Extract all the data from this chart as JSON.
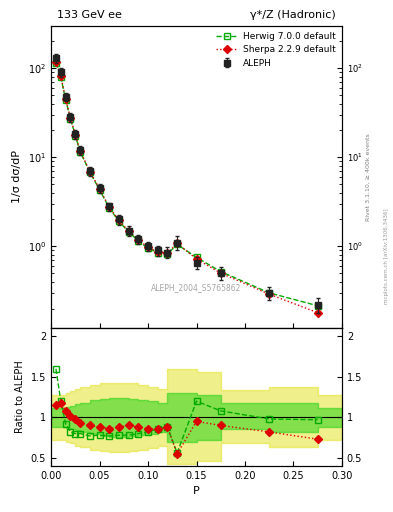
{
  "title_left": "133 GeV ee",
  "title_right": "γ*/Z (Hadronic)",
  "ylabel_main": "1/σ dσ/dP",
  "ylabel_ratio": "Ratio to ALEPH",
  "xlabel": "P",
  "watermark": "ALEPH_2004_S5765862",
  "right_label": "Rivet 3.1.10, ≥ 400k events",
  "right_label2": "mcplots.cern.ch [arXiv:1306.3436]",
  "aleph_x": [
    0.005,
    0.01,
    0.015,
    0.02,
    0.025,
    0.03,
    0.04,
    0.05,
    0.06,
    0.07,
    0.08,
    0.09,
    0.1,
    0.11,
    0.12,
    0.13,
    0.15,
    0.175,
    0.225,
    0.275
  ],
  "aleph_y": [
    130.0,
    90.0,
    48.0,
    28.0,
    18.0,
    12.0,
    7.0,
    4.5,
    2.8,
    2.0,
    1.5,
    1.2,
    1.0,
    0.9,
    0.85,
    1.1,
    0.65,
    0.5,
    0.3,
    0.22
  ],
  "aleph_yerr": [
    15.0,
    10.0,
    5.0,
    3.0,
    2.0,
    1.5,
    0.8,
    0.5,
    0.3,
    0.25,
    0.2,
    0.15,
    0.12,
    0.12,
    0.12,
    0.2,
    0.1,
    0.08,
    0.05,
    0.04
  ],
  "herwig_x": [
    0.005,
    0.01,
    0.015,
    0.02,
    0.025,
    0.03,
    0.04,
    0.05,
    0.06,
    0.07,
    0.08,
    0.09,
    0.1,
    0.11,
    0.12,
    0.13,
    0.15,
    0.175,
    0.225,
    0.275
  ],
  "herwig_y": [
    115.0,
    80.0,
    44.0,
    27.0,
    17.5,
    11.5,
    6.8,
    4.3,
    2.7,
    1.9,
    1.45,
    1.15,
    0.95,
    0.85,
    0.82,
    1.05,
    0.75,
    0.52,
    0.3,
    0.215
  ],
  "sherpa_x": [
    0.005,
    0.01,
    0.015,
    0.02,
    0.025,
    0.03,
    0.04,
    0.05,
    0.06,
    0.07,
    0.08,
    0.09,
    0.1,
    0.11,
    0.12,
    0.13,
    0.15,
    0.175,
    0.225,
    0.275
  ],
  "sherpa_y": [
    118.0,
    82.0,
    45.0,
    27.5,
    17.8,
    11.8,
    6.9,
    4.4,
    2.75,
    1.95,
    1.48,
    1.18,
    0.97,
    0.87,
    0.84,
    1.08,
    0.72,
    0.5,
    0.29,
    0.18
  ],
  "ratio_herwig": [
    1.6,
    1.2,
    0.92,
    0.82,
    0.8,
    0.8,
    0.77,
    0.78,
    0.77,
    0.78,
    0.78,
    0.8,
    0.82,
    0.86,
    0.88,
    0.56,
    1.2,
    1.08,
    0.98,
    0.97
  ],
  "ratio_sherpa": [
    1.15,
    1.18,
    1.08,
    1.02,
    0.98,
    0.93,
    0.9,
    0.88,
    0.86,
    0.88,
    0.9,
    0.88,
    0.86,
    0.85,
    0.88,
    0.55,
    0.95,
    0.9,
    0.82,
    0.73
  ],
  "band_x": [
    0.0,
    0.005,
    0.01,
    0.015,
    0.02,
    0.025,
    0.03,
    0.04,
    0.05,
    0.06,
    0.07,
    0.08,
    0.09,
    0.1,
    0.11,
    0.12,
    0.13,
    0.15,
    0.175,
    0.225,
    0.275,
    0.3
  ],
  "band_green_lo": [
    0.88,
    0.88,
    0.88,
    0.87,
    0.86,
    0.84,
    0.82,
    0.79,
    0.77,
    0.76,
    0.76,
    0.77,
    0.78,
    0.8,
    0.82,
    0.7,
    0.7,
    0.72,
    0.85,
    0.82,
    0.88,
    0.88
  ],
  "band_green_hi": [
    1.12,
    1.12,
    1.12,
    1.13,
    1.14,
    1.16,
    1.18,
    1.21,
    1.23,
    1.24,
    1.24,
    1.23,
    1.22,
    1.2,
    1.18,
    1.3,
    1.3,
    1.28,
    1.18,
    1.18,
    1.12,
    1.12
  ],
  "band_yellow_lo": [
    0.72,
    0.72,
    0.72,
    0.7,
    0.68,
    0.65,
    0.63,
    0.6,
    0.58,
    0.57,
    0.57,
    0.58,
    0.6,
    0.62,
    0.65,
    0.42,
    0.42,
    0.46,
    0.68,
    0.63,
    0.72,
    0.72
  ],
  "band_yellow_hi": [
    1.28,
    1.28,
    1.28,
    1.3,
    1.32,
    1.35,
    1.37,
    1.4,
    1.42,
    1.43,
    1.43,
    1.42,
    1.4,
    1.38,
    1.35,
    1.6,
    1.6,
    1.56,
    1.34,
    1.38,
    1.28,
    1.28
  ],
  "ylim_main": [
    0.12,
    300
  ],
  "ylim_ratio": [
    0.4,
    2.1
  ],
  "xlim": [
    0.0,
    0.3
  ],
  "color_aleph": "#222222",
  "color_herwig": "#00aa00",
  "color_sherpa": "#dd0000",
  "color_green_band": "#00cc00",
  "color_yellow_band": "#dddd00",
  "alpha_green": 0.45,
  "alpha_yellow": 0.45
}
